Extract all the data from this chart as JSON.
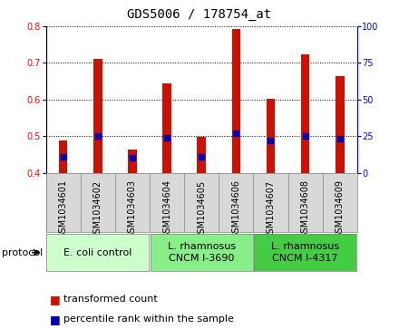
{
  "title": "GDS5006 / 178754_at",
  "samples": [
    "GSM1034601",
    "GSM1034602",
    "GSM1034603",
    "GSM1034604",
    "GSM1034605",
    "GSM1034606",
    "GSM1034607",
    "GSM1034608",
    "GSM1034609"
  ],
  "transformed_count": [
    0.487,
    0.712,
    0.463,
    0.645,
    0.498,
    0.793,
    0.601,
    0.724,
    0.663
  ],
  "percentile_rank": [
    11,
    25,
    10,
    24,
    11,
    27,
    22,
    25,
    23
  ],
  "ylim_left": [
    0.4,
    0.8
  ],
  "ylim_right": [
    0,
    100
  ],
  "yticks_left": [
    0.4,
    0.5,
    0.6,
    0.7,
    0.8
  ],
  "yticks_right": [
    0,
    25,
    50,
    75,
    100
  ],
  "groups": [
    {
      "label": "E. coli control",
      "start": 0,
      "end": 3,
      "color": "#ccffcc"
    },
    {
      "label": "L. rhamnosus\nCNCM I-3690",
      "start": 3,
      "end": 6,
      "color": "#88ee88"
    },
    {
      "label": "L. rhamnosus\nCNCM I-4317",
      "start": 6,
      "end": 9,
      "color": "#44cc44"
    }
  ],
  "bar_color": "#cc1100",
  "dot_color": "#0000bb",
  "bar_bottom": 0.4,
  "bar_width": 0.25,
  "dot_size": 18,
  "title_fontsize": 10,
  "tick_fontsize": 7,
  "label_fontsize": 8,
  "legend_fontsize": 8,
  "group_label_fontsize": 8
}
